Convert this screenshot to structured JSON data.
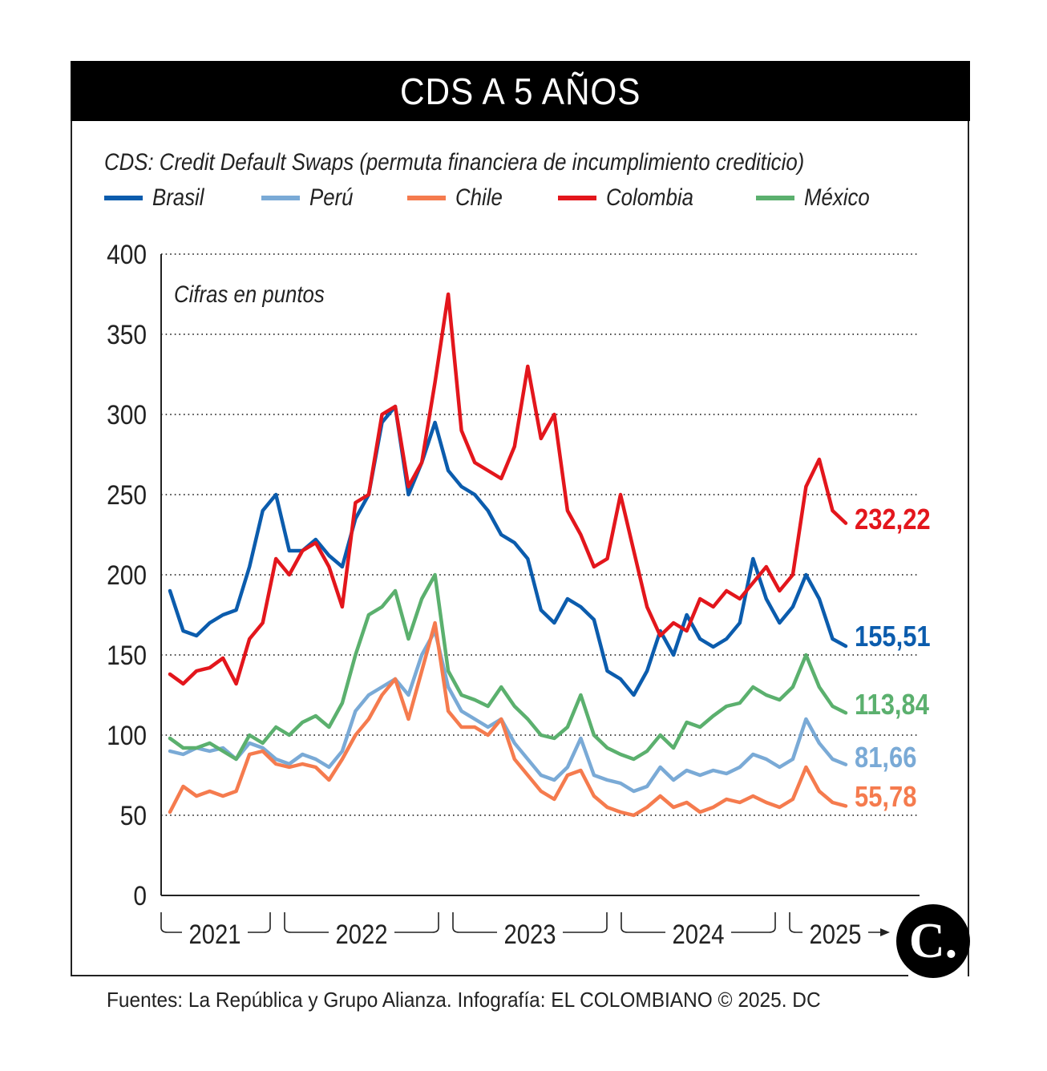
{
  "header": {
    "title": "CDS A 5 AÑOS"
  },
  "subtitle": "CDS: Credit Default Swaps (permuta financiera de incumplimiento crediticio)",
  "footer": "Fuentes: La República y Grupo Alianza. Infografía: EL COLOMBIANO © 2025. DC",
  "logo": {
    "glyph": "C.",
    "icon": "el-colombiano-logo-icon"
  },
  "chart_data": {
    "type": "line",
    "title": "CDS A 5 AÑOS",
    "subtitle": "CDS: Credit Default Swaps (permuta financiera de incumplimiento crediticio)",
    "annotation": "Cifras en puntos",
    "xlabel": "",
    "ylabel": "",
    "ylim": [
      0,
      400
    ],
    "yticks": [
      0,
      50,
      100,
      150,
      200,
      250,
      300,
      350,
      400
    ],
    "ytick_labels": [
      "0",
      "50",
      "100",
      "150",
      "200",
      "250",
      "300",
      "350",
      "400"
    ],
    "grid": true,
    "legend_position": "top",
    "x_periods": [
      "2021",
      "2022",
      "2023",
      "2024",
      "2025"
    ],
    "x_period_span_months": [
      12,
      12,
      12,
      12,
      4
    ],
    "x_unit": "month index from Jan 2021",
    "x": [
      0,
      1,
      2,
      3,
      4,
      5,
      6,
      7,
      8,
      9,
      10,
      11,
      12,
      13,
      14,
      15,
      16,
      17,
      18,
      19,
      20,
      21,
      22,
      23,
      24,
      25,
      26,
      27,
      28,
      29,
      30,
      31,
      32,
      33,
      34,
      35,
      36,
      37,
      38,
      39,
      40,
      41,
      42,
      43,
      44,
      45,
      46,
      47,
      48,
      49,
      50,
      51
    ],
    "series": [
      {
        "name": "Brasil",
        "color": "#0b5cad",
        "last_label": "155,51",
        "values": [
          190,
          165,
          162,
          170,
          175,
          178,
          205,
          240,
          250,
          215,
          215,
          222,
          212,
          205,
          235,
          250,
          295,
          305,
          250,
          270,
          295,
          265,
          255,
          250,
          240,
          225,
          220,
          210,
          178,
          170,
          185,
          180,
          172,
          140,
          135,
          125,
          140,
          165,
          150,
          175,
          160,
          155,
          160,
          170,
          210,
          185,
          170,
          180,
          200,
          185,
          160,
          155.51
        ]
      },
      {
        "name": "Perú",
        "color": "#7aaad6",
        "last_label": "81,66",
        "values": [
          90,
          88,
          92,
          90,
          92,
          85,
          95,
          92,
          85,
          82,
          88,
          85,
          80,
          90,
          115,
          125,
          130,
          135,
          125,
          150,
          165,
          130,
          115,
          110,
          105,
          110,
          95,
          85,
          75,
          72,
          80,
          98,
          75,
          72,
          70,
          65,
          68,
          80,
          72,
          78,
          75,
          78,
          76,
          80,
          88,
          85,
          80,
          85,
          110,
          95,
          85,
          81.66
        ]
      },
      {
        "name": "Chile",
        "color": "#f57b4e",
        "last_label": "55,78",
        "values": [
          52,
          68,
          62,
          65,
          62,
          65,
          88,
          90,
          82,
          80,
          82,
          80,
          72,
          85,
          100,
          110,
          125,
          135,
          110,
          140,
          170,
          115,
          105,
          105,
          100,
          110,
          85,
          75,
          65,
          60,
          75,
          78,
          62,
          55,
          52,
          50,
          55,
          62,
          55,
          58,
          52,
          55,
          60,
          58,
          62,
          58,
          55,
          60,
          80,
          65,
          58,
          55.78
        ]
      },
      {
        "name": "Colombia",
        "color": "#e3161c",
        "last_label": "232,22",
        "values": [
          138,
          132,
          140,
          142,
          148,
          132,
          160,
          170,
          210,
          200,
          215,
          220,
          205,
          180,
          245,
          250,
          300,
          305,
          255,
          270,
          320,
          375,
          290,
          270,
          265,
          260,
          280,
          330,
          285,
          300,
          240,
          225,
          205,
          210,
          250,
          215,
          180,
          162,
          170,
          165,
          185,
          180,
          190,
          185,
          195,
          205,
          190,
          200,
          255,
          272,
          240,
          232.22
        ]
      },
      {
        "name": "México",
        "color": "#5bb06e",
        "last_label": "113,84",
        "values": [
          98,
          92,
          92,
          95,
          90,
          85,
          100,
          95,
          105,
          100,
          108,
          112,
          105,
          120,
          150,
          175,
          180,
          190,
          160,
          185,
          200,
          140,
          125,
          122,
          118,
          130,
          118,
          110,
          100,
          98,
          105,
          125,
          100,
          92,
          88,
          85,
          90,
          100,
          92,
          108,
          105,
          112,
          118,
          120,
          130,
          125,
          122,
          130,
          150,
          130,
          118,
          113.84
        ]
      }
    ]
  }
}
